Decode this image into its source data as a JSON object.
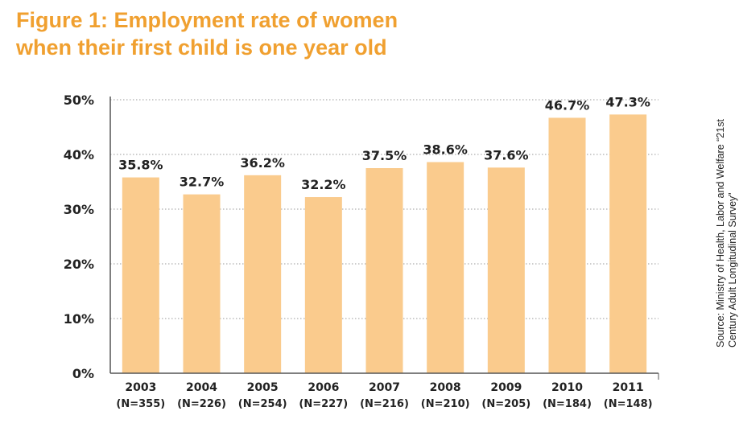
{
  "title_line1": "Figure 1: Employment rate of women",
  "title_line2": "when their first child is one year old",
  "source": "Source: Ministry of Health, Labor and Welfare “21st Century Adult Longitudinal Survey”",
  "colors": {
    "title": "#f0a030",
    "bar": "#facb8d",
    "grid": "#999999",
    "text": "#222222"
  },
  "chart_data": {
    "type": "bar",
    "categories": [
      "2003",
      "2004",
      "2005",
      "2006",
      "2007",
      "2008",
      "2009",
      "2010",
      "2011"
    ],
    "sample_sizes": [
      "(N=355)",
      "(N=226)",
      "(N=254)",
      "(N=227)",
      "(N=216)",
      "(N=210)",
      "(N=205)",
      "(N=184)",
      "(N=148)"
    ],
    "values": [
      35.8,
      32.7,
      36.2,
      32.2,
      37.5,
      38.6,
      37.6,
      46.7,
      47.3
    ],
    "value_labels": [
      "35.8%",
      "32.7%",
      "36.2%",
      "32.2%",
      "37.5%",
      "38.6%",
      "37.6%",
      "46.7%",
      "47.3%"
    ],
    "yticks": [
      0,
      10,
      20,
      30,
      40,
      50
    ],
    "ytick_labels": [
      "0%",
      "10%",
      "20%",
      "30%",
      "40%",
      "50%"
    ],
    "ylim": [
      0,
      50
    ],
    "grid": "dotted horizontal",
    "legend": "none"
  }
}
